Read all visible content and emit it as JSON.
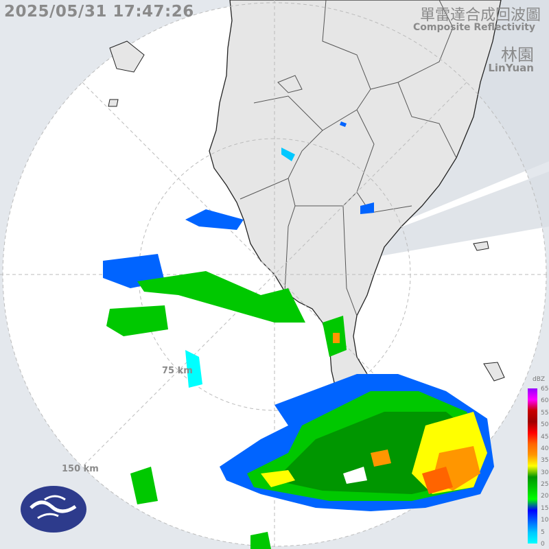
{
  "header": {
    "timestamp": "2025/05/31 17:47:26",
    "product_zh": "單雷達合成回波圖",
    "product_en": "Composite Reflectivity",
    "station_zh": "林園",
    "station_en": "LinYuan"
  },
  "range_rings": [
    {
      "label": "75 km"
    },
    {
      "label": "150 km"
    }
  ],
  "legend": {
    "unit": "dBZ",
    "ticks": [
      "65",
      "60",
      "55",
      "50",
      "45",
      "40",
      "35",
      "30",
      "25",
      "20",
      "15",
      "10",
      "5",
      "0"
    ],
    "colors": [
      "#9600ff",
      "#ff00ff",
      "#c80000",
      "#a00000",
      "#ff0000",
      "#ff6400",
      "#ff9600",
      "#ffff00",
      "#009600",
      "#00c800",
      "#00ff00",
      "#0000ff",
      "#0064ff",
      "#00c8ff",
      "#00ffff"
    ]
  },
  "colors": {
    "background": "#e4e8ed",
    "land": "#e6e6e6",
    "radar_area": "#ffffff",
    "text": "#8a8a8a"
  },
  "logo": {
    "icon": "cwa-logo"
  }
}
